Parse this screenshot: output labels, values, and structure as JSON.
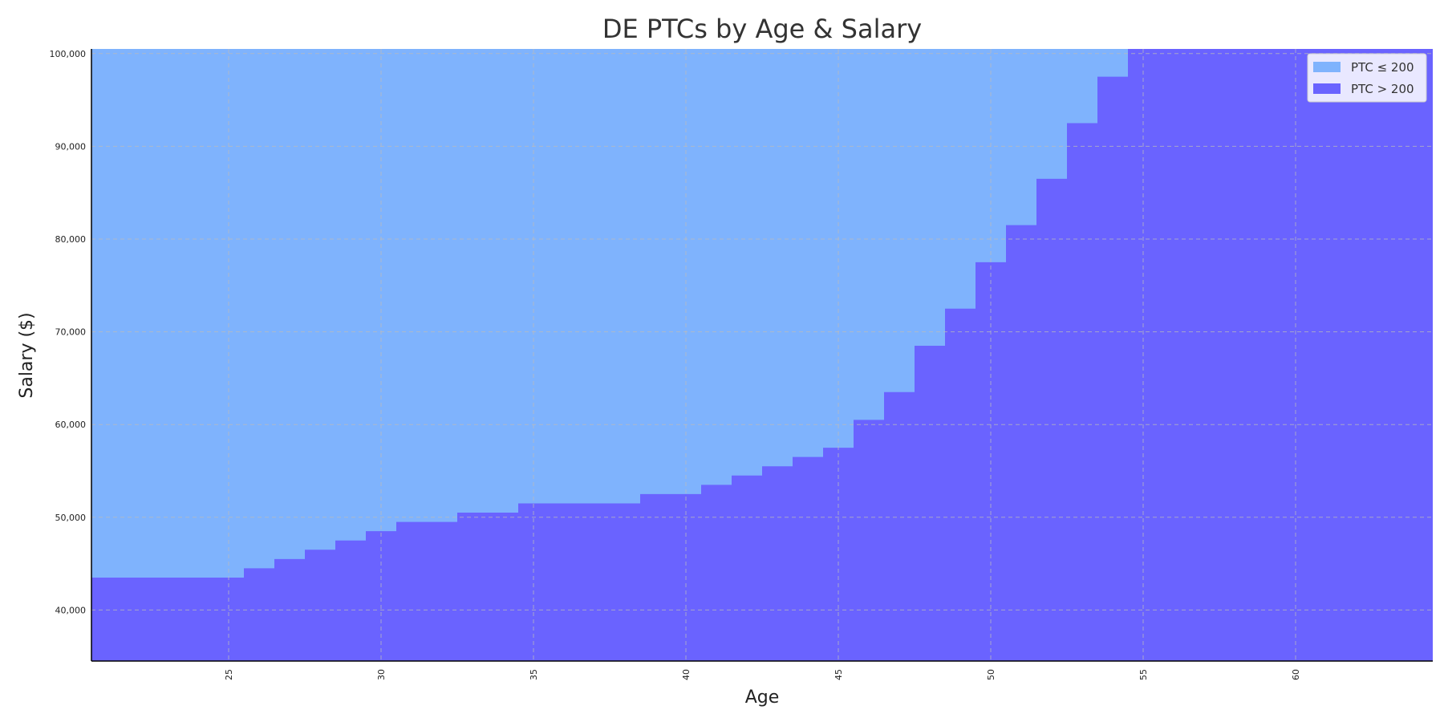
{
  "chart_data": {
    "type": "area",
    "title": "DE PTCs by Age & Salary",
    "xlabel": "Age",
    "ylabel": "Salary ($)",
    "xlim": [
      20.5,
      64.5
    ],
    "ylim": [
      34500,
      100500
    ],
    "x_ticks": [
      25,
      30,
      35,
      40,
      45,
      50,
      55,
      60
    ],
    "y_ticks": [
      40000,
      50000,
      60000,
      70000,
      80000,
      90000,
      100000
    ],
    "y_tick_labels": [
      "40,000",
      "50,000",
      "60,000",
      "70,000",
      "80,000",
      "90,000",
      "100,000"
    ],
    "grid": true,
    "legend_position": "top-right",
    "colors": {
      "ptc_le_200": "#7fb3fd",
      "ptc_gt_200": "#6a63ff",
      "grid": "#bbbbbb"
    },
    "series": [
      {
        "name": "PTC ≤ 200",
        "color": "#7fb3fd"
      },
      {
        "name": "PTC > 200",
        "color": "#6a63ff"
      }
    ],
    "boundary": {
      "description_of_values": "salary threshold per age, step function; region below is PTC > 200",
      "ages": [
        21,
        22,
        23,
        24,
        25,
        26,
        27,
        28,
        29,
        30,
        31,
        32,
        33,
        34,
        35,
        36,
        37,
        38,
        39,
        40,
        41,
        42,
        43,
        44,
        45,
        46,
        47,
        48,
        49,
        50,
        51,
        52,
        53,
        54,
        55,
        56,
        57,
        58,
        59,
        60,
        61,
        62,
        63,
        64
      ],
      "salary": [
        43500,
        43500,
        43500,
        43500,
        43500,
        44500,
        45500,
        46500,
        47500,
        48500,
        49500,
        49500,
        50500,
        50500,
        51500,
        51500,
        51500,
        51500,
        52500,
        52500,
        53500,
        54500,
        55500,
        56500,
        57500,
        60500,
        63500,
        68500,
        72500,
        77500,
        81500,
        86500,
        92500,
        97500,
        100500,
        100500,
        100500,
        100500,
        100500,
        100500,
        100500,
        100500,
        100500,
        100500
      ]
    }
  }
}
